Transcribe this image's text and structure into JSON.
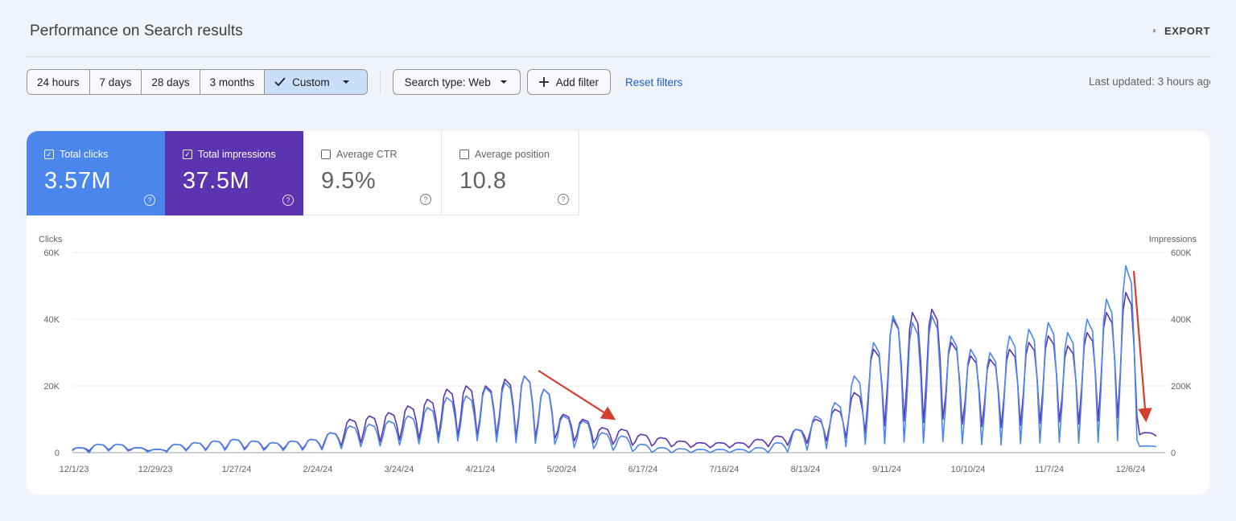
{
  "page": {
    "title": "Performance on Search results",
    "export_label": "EXPORT",
    "last_updated": "Last updated: 3 hours ago"
  },
  "toolbar": {
    "ranges": [
      "24 hours",
      "7 days",
      "28 days",
      "3 months"
    ],
    "custom_label": "Custom",
    "search_type": "Search type: Web",
    "add_filter": "Add filter",
    "reset_filters": "Reset filters"
  },
  "metrics": [
    {
      "label": "Total clicks",
      "value": "3.57M",
      "checked": true,
      "color": "#4a86ec"
    },
    {
      "label": "Total impressions",
      "value": "37.5M",
      "checked": true,
      "color": "#5d34b0"
    },
    {
      "label": "Average CTR",
      "value": "9.5%",
      "checked": false
    },
    {
      "label": "Average position",
      "value": "10.8",
      "checked": false
    }
  ],
  "icons": {
    "export": "download-icon",
    "check": "check-icon",
    "dropdown": "caret-down-icon",
    "add": "plus-icon",
    "help": "help-circle-icon"
  },
  "chart_data": {
    "type": "line",
    "left_axis_label": "Clicks",
    "right_axis_label": "Impressions",
    "left_ticks": [
      "0",
      "20K",
      "40K",
      "60K"
    ],
    "right_ticks": [
      "0",
      "200K",
      "400K",
      "600K"
    ],
    "ylim_left": [
      0,
      60000
    ],
    "ylim_right": [
      0,
      600000
    ],
    "x_ticks": [
      "12/1/23",
      "12/29/23",
      "1/27/24",
      "2/24/24",
      "3/24/24",
      "4/21/24",
      "5/20/24",
      "6/17/24",
      "7/16/24",
      "8/13/24",
      "9/11/24",
      "10/10/24",
      "11/7/24",
      "12/6/24"
    ],
    "grid": true,
    "series": [
      {
        "name": "Clicks",
        "color": "#4a86ec",
        "x": [
          "12/1/23",
          "12/8/23",
          "12/15/23",
          "12/22/23",
          "12/29/23",
          "1/5/24",
          "1/12/24",
          "1/19/24",
          "1/27/24",
          "2/3/24",
          "2/10/24",
          "2/17/24",
          "2/24/24",
          "3/2/24",
          "3/9/24",
          "3/16/24",
          "3/24/24",
          "3/31/24",
          "4/7/24",
          "4/14/24",
          "4/21/24",
          "4/28/24",
          "5/5/24",
          "5/12/24",
          "5/20/24",
          "5/27/24",
          "6/3/24",
          "6/10/24",
          "6/17/24",
          "6/24/24",
          "7/1/24",
          "7/8/24",
          "7/16/24",
          "7/23/24",
          "7/30/24",
          "8/6/24",
          "8/13/24",
          "8/20/24",
          "8/27/24",
          "9/3/24",
          "9/11/24",
          "9/18/24",
          "9/25/24",
          "10/2/24",
          "10/10/24",
          "10/17/24",
          "10/24/24",
          "10/31/24",
          "11/7/24",
          "11/14/24",
          "11/21/24",
          "11/28/24",
          "12/6/24",
          "12/13/24",
          "12/20/24",
          "12/27/24"
        ],
        "peaks": [
          1500,
          2500,
          2500,
          1500,
          1000,
          2500,
          3000,
          3500,
          4000,
          3500,
          3000,
          3500,
          4000,
          6000,
          8000,
          8500,
          9500,
          11000,
          13500,
          16500,
          17000,
          19500,
          21000,
          23000,
          19000,
          11000,
          9500,
          6000,
          5000,
          2500,
          1500,
          1200,
          1000,
          1000,
          1000,
          1500,
          3000,
          7000,
          11000,
          15000,
          23000,
          33000,
          41000,
          39000,
          41000,
          35000,
          31000,
          30000,
          35000,
          37000,
          39000,
          36000,
          40000,
          46000,
          56000,
          2000
        ],
        "troughs": [
          0,
          500,
          500,
          300,
          200,
          500,
          600,
          700,
          800,
          700,
          600,
          700,
          800,
          1200,
          1800,
          2000,
          2300,
          2600,
          3000,
          3500,
          3600,
          3200,
          3000,
          2800,
          2500,
          1500,
          1200,
          700,
          400,
          100,
          0,
          0,
          0,
          0,
          0,
          0,
          200,
          700,
          1200,
          1800,
          2500,
          2700,
          3200,
          2900,
          3300,
          2700,
          2400,
          2300,
          2700,
          2900,
          3100,
          2800,
          3100,
          3600,
          3800,
          1800
        ]
      },
      {
        "name": "Impressions",
        "color": "#5d34b0",
        "x": [
          "12/1/23",
          "12/8/23",
          "12/15/23",
          "12/22/23",
          "12/29/23",
          "1/5/24",
          "1/12/24",
          "1/19/24",
          "1/27/24",
          "2/3/24",
          "2/10/24",
          "2/17/24",
          "2/24/24",
          "3/2/24",
          "3/9/24",
          "3/16/24",
          "3/24/24",
          "3/31/24",
          "4/7/24",
          "4/14/24",
          "4/21/24",
          "4/28/24",
          "5/5/24",
          "5/12/24",
          "5/20/24",
          "5/27/24",
          "6/3/24",
          "6/10/24",
          "6/17/24",
          "6/24/24",
          "7/1/24",
          "7/8/24",
          "7/16/24",
          "7/23/24",
          "7/30/24",
          "8/6/24",
          "8/13/24",
          "8/20/24",
          "8/27/24",
          "9/3/24",
          "9/11/24",
          "9/18/24",
          "9/25/24",
          "10/2/24",
          "10/10/24",
          "10/17/24",
          "10/24/24",
          "10/31/24",
          "11/7/24",
          "11/14/24",
          "11/21/24",
          "11/28/24",
          "12/6/24",
          "12/13/24",
          "12/20/24",
          "12/27/24"
        ],
        "peaks": [
          15000,
          25000,
          25000,
          15000,
          10000,
          25000,
          30000,
          35000,
          40000,
          35000,
          30000,
          35000,
          40000,
          60000,
          100000,
          110000,
          120000,
          140000,
          160000,
          190000,
          200000,
          200000,
          220000,
          230000,
          190000,
          115000,
          100000,
          75000,
          70000,
          55000,
          45000,
          35000,
          30000,
          30000,
          30000,
          40000,
          50000,
          70000,
          100000,
          130000,
          180000,
          310000,
          400000,
          420000,
          430000,
          330000,
          290000,
          280000,
          310000,
          330000,
          350000,
          320000,
          360000,
          420000,
          480000,
          60000
        ],
        "troughs": [
          5000,
          8000,
          8000,
          6000,
          4000,
          8000,
          9000,
          10000,
          12000,
          11000,
          10000,
          11000,
          12000,
          20000,
          30000,
          33000,
          38000,
          42000,
          45000,
          50000,
          52000,
          50000,
          48000,
          46000,
          42000,
          35000,
          30000,
          25000,
          22000,
          20000,
          18000,
          16000,
          15000,
          15000,
          15000,
          18000,
          22000,
          28000,
          35000,
          45000,
          60000,
          80000,
          95000,
          90000,
          100000,
          85000,
          78000,
          75000,
          82000,
          88000,
          92000,
          86000,
          95000,
          105000,
          110000,
          50000
        ]
      }
    ],
    "annotations": [
      {
        "type": "arrow",
        "color": "#d23f31",
        "from": "5/20/24",
        "to": "6/17/24"
      },
      {
        "type": "arrow",
        "color": "#d23f31",
        "from": "12/20/24",
        "to": "12/27/24"
      }
    ]
  }
}
